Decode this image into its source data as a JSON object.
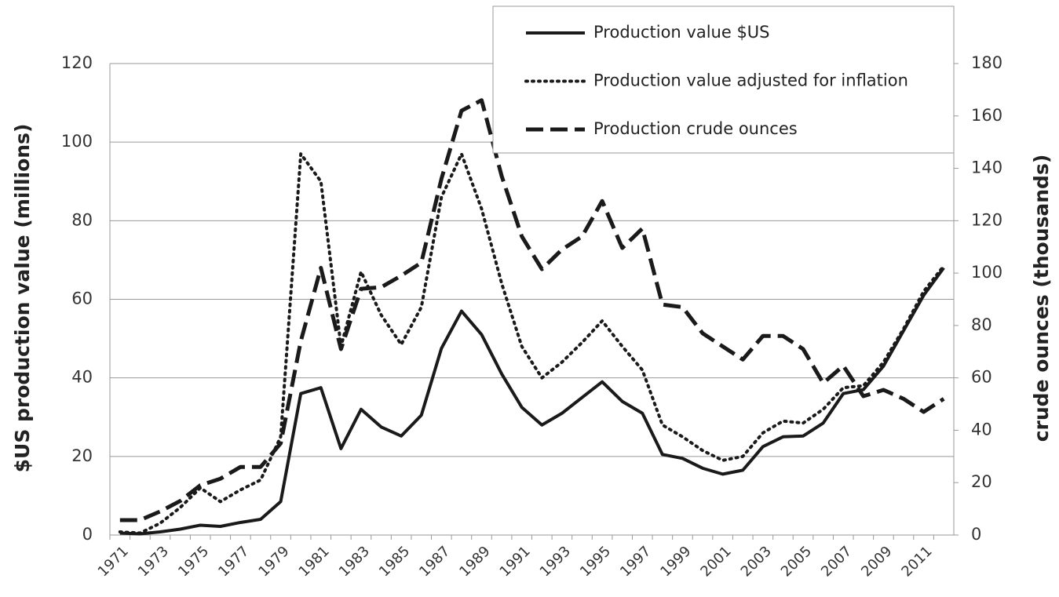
{
  "chart_data": {
    "type": "line",
    "categories": [
      "1971",
      null,
      "1973",
      null,
      "1975",
      null,
      "1977",
      null,
      "1979",
      null,
      "1981",
      null,
      "1983",
      null,
      "1985",
      null,
      "1987",
      null,
      "1989",
      null,
      "1991",
      null,
      "1993",
      null,
      "1995",
      null,
      "1997",
      null,
      "1999",
      null,
      "2001",
      null,
      "2003",
      null,
      "2005",
      null,
      "2007",
      null,
      "2009",
      null,
      "2011",
      null
    ],
    "series": [
      {
        "name": "Production value $US",
        "color": "#1a1a1a",
        "dash": "solid",
        "values": [
          0.5,
          0.3,
          0.8,
          1.5,
          2.5,
          2.2,
          3.2,
          4,
          8.5,
          36,
          37.5,
          22,
          32,
          27.5,
          25.2,
          30.5,
          47.5,
          57,
          51,
          41,
          32.5,
          28,
          31,
          35,
          39,
          34,
          31,
          20.5,
          19.5,
          17,
          15.5,
          16.5,
          22.5,
          25,
          25.2,
          28.5,
          36,
          37,
          43,
          52,
          61,
          68
        ]
      },
      {
        "name": "Production value adjusted for inflation",
        "color": "#1a1a1a",
        "dash": "dotted",
        "values": [
          0.8,
          0.5,
          3,
          7,
          12,
          8.5,
          11.5,
          14,
          25,
          97,
          90,
          48,
          67,
          56,
          48.5,
          58,
          86,
          97,
          83,
          64,
          48,
          40,
          44,
          49,
          54.5,
          48,
          42,
          28,
          25,
          21.5,
          19,
          20,
          26,
          29,
          28.5,
          32,
          37.5,
          38,
          44,
          52.5,
          62,
          68.5
        ]
      },
      {
        "name": "Production crude ounces",
        "color": "#1a1a1a",
        "dash": "dashed",
        "axis": "y2",
        "values": [
          5.7,
          5.7,
          9,
          13,
          19,
          21.5,
          26,
          26,
          35,
          74,
          102,
          71,
          94,
          94.6,
          99,
          104,
          136,
          162,
          166,
          137,
          114,
          101.5,
          109,
          114,
          127.5,
          109.6,
          117,
          88,
          87,
          77,
          72,
          67,
          76,
          76,
          71,
          58,
          64.6,
          53,
          55.4,
          52,
          47,
          52
        ]
      }
    ],
    "ylabel": "$US production value (millions)",
    "y2label": "crude ounces (thousands)",
    "ylim": [
      0,
      120
    ],
    "yticks": [
      0,
      20,
      40,
      60,
      80,
      100,
      120
    ],
    "y2lim": [
      0,
      180
    ],
    "y2ticks": [
      0,
      20,
      40,
      60,
      80,
      100,
      120,
      140,
      160,
      180
    ],
    "grid": true,
    "legend": "top-right"
  }
}
